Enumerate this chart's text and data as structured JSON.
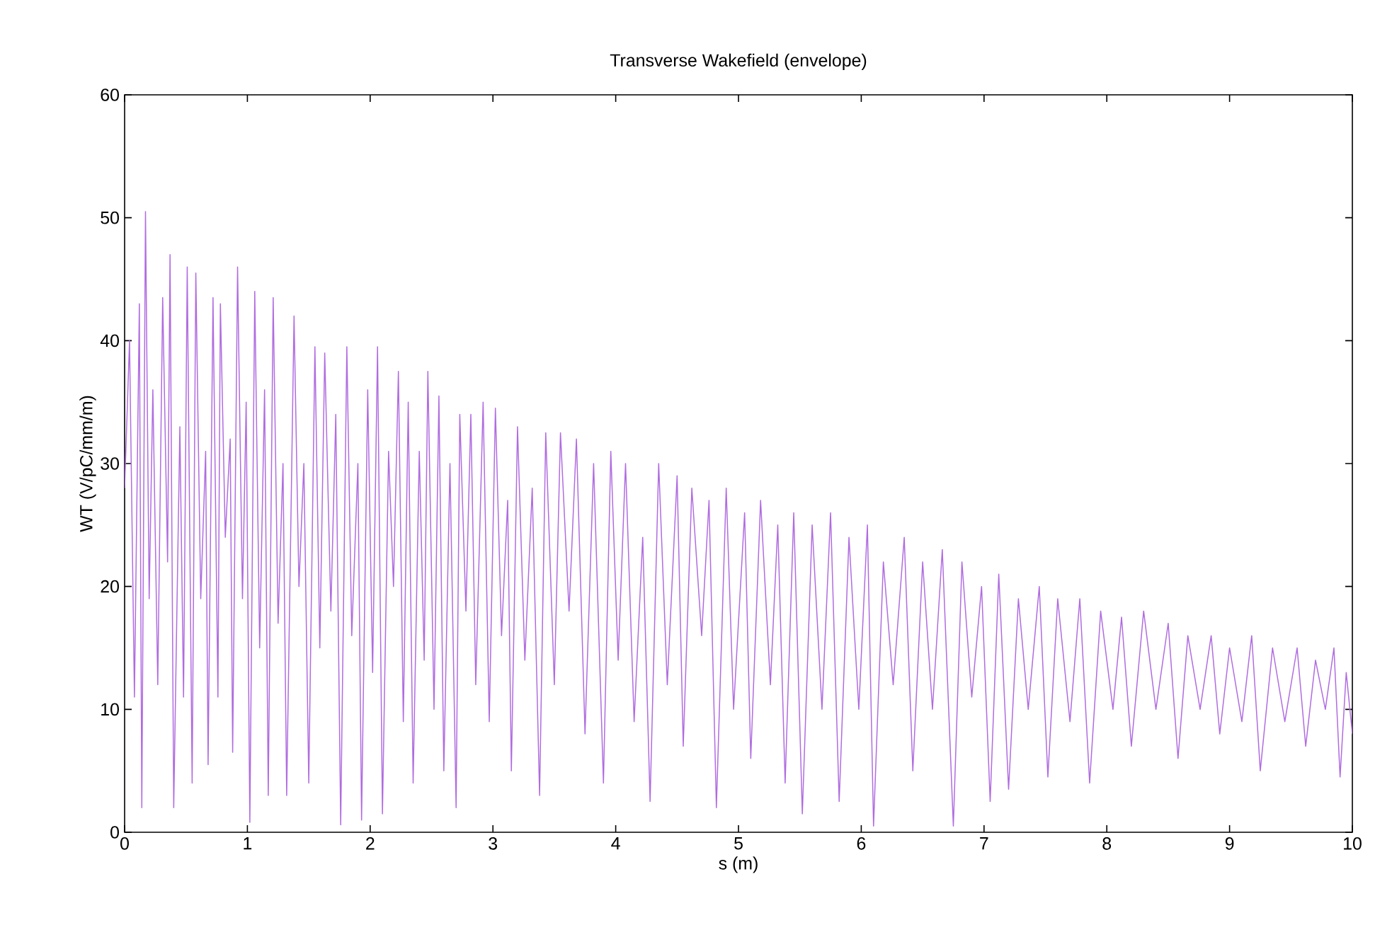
{
  "chart_data": {
    "type": "line",
    "title": "Transverse Wakefield (envelope)",
    "xlabel": "s (m)",
    "ylabel": "WT (V/pC/mm/m)",
    "xlim": [
      0,
      10
    ],
    "ylim": [
      0,
      60
    ],
    "xticks": [
      0,
      1,
      2,
      3,
      4,
      5,
      6,
      7,
      8,
      9,
      10
    ],
    "yticks": [
      0,
      10,
      20,
      30,
      40,
      50,
      60
    ],
    "marker": "none",
    "line_style": "solid",
    "series": [
      {
        "color": "#b06ce0",
        "x": [
          0,
          0.04,
          0.08,
          0.12,
          0.14,
          0.17,
          0.2,
          0.23,
          0.27,
          0.31,
          0.35,
          0.37,
          0.4,
          0.45,
          0.48,
          0.51,
          0.55,
          0.58,
          0.62,
          0.66,
          0.68,
          0.72,
          0.76,
          0.78,
          0.82,
          0.86,
          0.88,
          0.92,
          0.96,
          0.99,
          1.02,
          1.06,
          1.1,
          1.14,
          1.17,
          1.21,
          1.25,
          1.29,
          1.32,
          1.38,
          1.42,
          1.46,
          1.5,
          1.55,
          1.59,
          1.63,
          1.68,
          1.72,
          1.76,
          1.81,
          1.85,
          1.9,
          1.93,
          1.98,
          2.02,
          2.06,
          2.1,
          2.15,
          2.19,
          2.23,
          2.27,
          2.31,
          2.35,
          2.4,
          2.44,
          2.47,
          2.52,
          2.56,
          2.6,
          2.65,
          2.7,
          2.73,
          2.78,
          2.82,
          2.86,
          2.92,
          2.97,
          3.02,
          3.07,
          3.12,
          3.15,
          3.2,
          3.26,
          3.32,
          3.38,
          3.43,
          3.5,
          3.55,
          3.62,
          3.68,
          3.75,
          3.82,
          3.9,
          3.96,
          4.02,
          4.08,
          4.15,
          4.22,
          4.28,
          4.35,
          4.42,
          4.5,
          4.55,
          4.62,
          4.7,
          4.76,
          4.82,
          4.9,
          4.96,
          5.05,
          5.1,
          5.18,
          5.26,
          5.32,
          5.38,
          5.45,
          5.52,
          5.6,
          5.68,
          5.75,
          5.82,
          5.9,
          5.98,
          6.05,
          6.1,
          6.18,
          6.26,
          6.35,
          6.42,
          6.5,
          6.58,
          6.66,
          6.75,
          6.82,
          6.9,
          6.98,
          7.05,
          7.12,
          7.2,
          7.28,
          7.36,
          7.45,
          7.52,
          7.6,
          7.7,
          7.78,
          7.86,
          7.95,
          8.05,
          8.12,
          8.2,
          8.3,
          8.4,
          8.5,
          8.58,
          8.66,
          8.76,
          8.85,
          8.92,
          9.0,
          9.1,
          9.18,
          9.25,
          9.35,
          9.45,
          9.55,
          9.62,
          9.7,
          9.78,
          9.85,
          9.9,
          9.95,
          10
        ],
        "values": [
          28,
          40,
          11,
          43,
          2,
          50.5,
          19,
          36,
          12,
          43.5,
          22,
          47,
          2,
          33,
          11,
          46,
          4,
          45.5,
          19,
          31,
          5.5,
          43.5,
          11,
          43,
          24,
          32,
          6.5,
          46,
          19,
          35,
          0.8,
          44,
          15,
          36,
          3,
          43.5,
          17,
          30,
          3,
          42,
          20,
          30,
          4,
          39.5,
          15,
          39,
          18,
          34,
          0.6,
          39.5,
          16,
          30,
          1,
          36,
          13,
          39.5,
          1.5,
          31,
          20,
          37.5,
          9,
          35,
          4,
          31,
          14,
          37.5,
          10,
          35.5,
          5,
          30,
          2,
          34,
          18,
          34,
          12,
          35,
          9,
          34.5,
          16,
          27,
          5,
          33,
          14,
          28,
          3,
          32.5,
          12,
          32.5,
          18,
          32,
          8,
          30,
          4,
          31,
          14,
          30,
          9,
          24,
          2.5,
          30,
          12,
          29,
          7,
          28,
          16,
          27,
          2,
          28,
          10,
          26,
          6,
          27,
          12,
          25,
          4,
          26,
          1.5,
          25,
          10,
          26,
          2.5,
          24,
          10,
          25,
          0.5,
          22,
          12,
          24,
          5,
          22,
          10,
          23,
          0.5,
          22,
          11,
          20,
          2.5,
          21,
          3.5,
          19,
          10,
          20,
          4.5,
          19,
          9,
          19,
          4,
          18,
          10,
          17.5,
          7,
          18,
          10,
          17,
          6,
          16,
          10,
          16,
          8,
          15,
          9,
          16,
          5,
          15,
          9,
          15,
          7,
          14,
          10,
          15,
          4.5,
          13,
          8
        ]
      }
    ]
  }
}
